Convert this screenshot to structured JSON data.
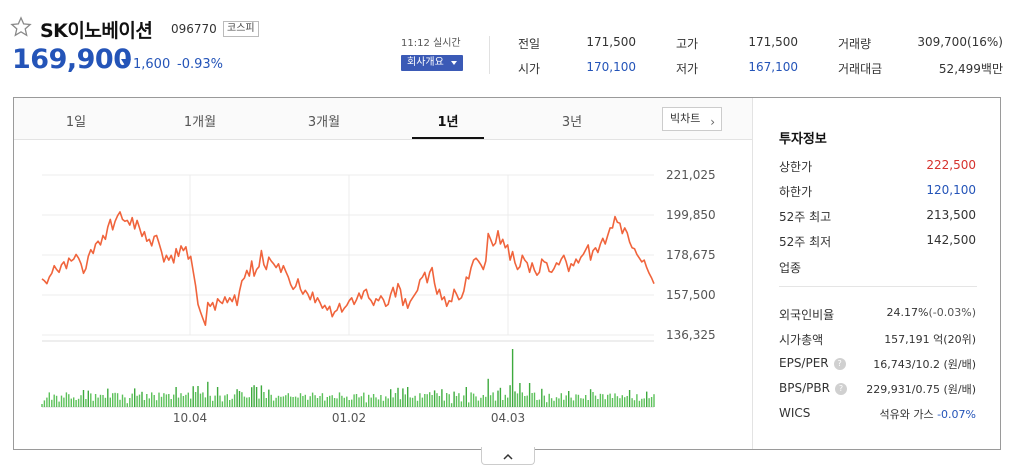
{
  "stock": {
    "name": "SK이노베이션",
    "code": "096770",
    "market": "코스피",
    "price": "169,900",
    "change": "1,600",
    "change_pct": "-0.93%",
    "time": "11:12 실시간",
    "company_button": "회사개요"
  },
  "summary": {
    "prev_close_label": "전일",
    "prev_close": "171,500",
    "high_label": "고가",
    "high": "171,500",
    "volume_label": "거래량",
    "volume": "309,700(16%)",
    "open_label": "시가",
    "open": "170,100",
    "low_label": "저가",
    "low": "167,100",
    "trade_value_label": "거래대금",
    "trade_value": "52,499백만"
  },
  "tabs": [
    "1일",
    "1개월",
    "3개월",
    "1년",
    "3년"
  ],
  "active_tab": "1년",
  "big_chart_button": "빅차트",
  "chart_data": {
    "type": "line",
    "y_ticks": [
      "221,025",
      "199,850",
      "178,675",
      "157,500",
      "136,325"
    ],
    "x_ticks": [
      "10.04",
      "01.02",
      "04.03"
    ],
    "ylim": [
      136325,
      221025
    ],
    "colors": {
      "price_line": "#f0643c",
      "volume_bar": "#5cc15a",
      "volume_bar_accent": "#3daa3d"
    },
    "price_series": [
      166000,
      165000,
      163500,
      167000,
      169000,
      173000,
      171000,
      169500,
      173500,
      175000,
      171500,
      177000,
      175500,
      176500,
      179000,
      177000,
      174000,
      169000,
      171500,
      178000,
      181500,
      179500,
      184500,
      186000,
      184000,
      189000,
      187000,
      193500,
      197500,
      192000,
      196500,
      199500,
      201500,
      197500,
      196500,
      197000,
      194500,
      198500,
      192500,
      197000,
      193000,
      188500,
      191000,
      186000,
      187000,
      183500,
      188500,
      189000,
      185000,
      180500,
      175000,
      178500,
      176000,
      178500,
      174500,
      182000,
      178000,
      183500,
      181000,
      183000,
      176500,
      178000,
      170000,
      162500,
      152500,
      148500,
      145000,
      141500,
      153500,
      151500,
      153500,
      149500,
      155500,
      154000,
      153000,
      156500,
      153500,
      156000,
      154000,
      157500,
      152000,
      159500,
      165000,
      166500,
      170500,
      167500,
      175500,
      167500,
      171000,
      172500,
      181000,
      173500,
      171000,
      177500,
      175500,
      174000,
      172000,
      174000,
      169500,
      173000,
      170000,
      167000,
      163000,
      160500,
      162000,
      166000,
      160500,
      158000,
      160000,
      158000,
      155000,
      159000,
      153500,
      156000,
      153500,
      150500,
      152000,
      149500,
      151500,
      146000,
      148500,
      149500,
      153000,
      148500,
      150500,
      152000,
      154500,
      156000,
      152500,
      155000,
      158500,
      155500,
      159500,
      160500,
      156000,
      154500,
      152000,
      155500,
      154500,
      157000,
      155000,
      151500,
      152500,
      158000,
      161500,
      156500,
      163500,
      160500,
      152000,
      155500,
      150500,
      154000,
      156000,
      158000,
      160000,
      165500,
      167000,
      169500,
      164000,
      169500,
      172000,
      163500,
      158000,
      160500,
      155000,
      156500,
      151500,
      154500,
      154000,
      160500,
      158000,
      155000,
      156000,
      159500,
      167000,
      166000,
      172000,
      176000,
      177000,
      175500,
      173500,
      171000,
      175500,
      190000,
      187000,
      183500,
      185000,
      191500,
      184500,
      187000,
      182500,
      184000,
      176000,
      180500,
      174500,
      171000,
      172500,
      178500,
      176000,
      174500,
      169500,
      174500,
      170500,
      168000,
      169500,
      176500,
      175000,
      174500,
      170000,
      169500,
      171500,
      174500,
      173500,
      176500,
      178500,
      175000,
      170000,
      174000,
      173000,
      176500,
      174500,
      177500,
      179000,
      181500,
      184000,
      176000,
      181000,
      182500,
      180000,
      184500,
      187500,
      184500,
      189000,
      193000,
      193000,
      199000,
      196000,
      195500,
      190000,
      193000,
      190500,
      185500,
      182500,
      182000,
      179000,
      177000,
      175000,
      176000,
      172000,
      169000,
      166500,
      163500
    ]
  },
  "info": {
    "title": "투자정보",
    "upper_limit_label": "상한가",
    "upper_limit": "222,500",
    "lower_limit_label": "하한가",
    "lower_limit": "120,100",
    "w52_high_label": "52주 최고",
    "w52_high": "213,500",
    "w52_low_label": "52주 최저",
    "w52_low": "142,500",
    "sector_label": "업종",
    "foreign_label": "외국인비율",
    "foreign_value": "24.17%",
    "foreign_delta": "(-0.03%)",
    "mcap_label": "시가총액",
    "mcap": "157,191 억(20위)",
    "eps_label": "EPS/PER",
    "eps": "16,743/10.2 (원/배)",
    "bps_label": "BPS/PBR",
    "bps": "229,931/0.75 (원/배)",
    "wics_label": "WICS",
    "wics": "석유와 가스",
    "wics_delta": "-0.07%"
  }
}
